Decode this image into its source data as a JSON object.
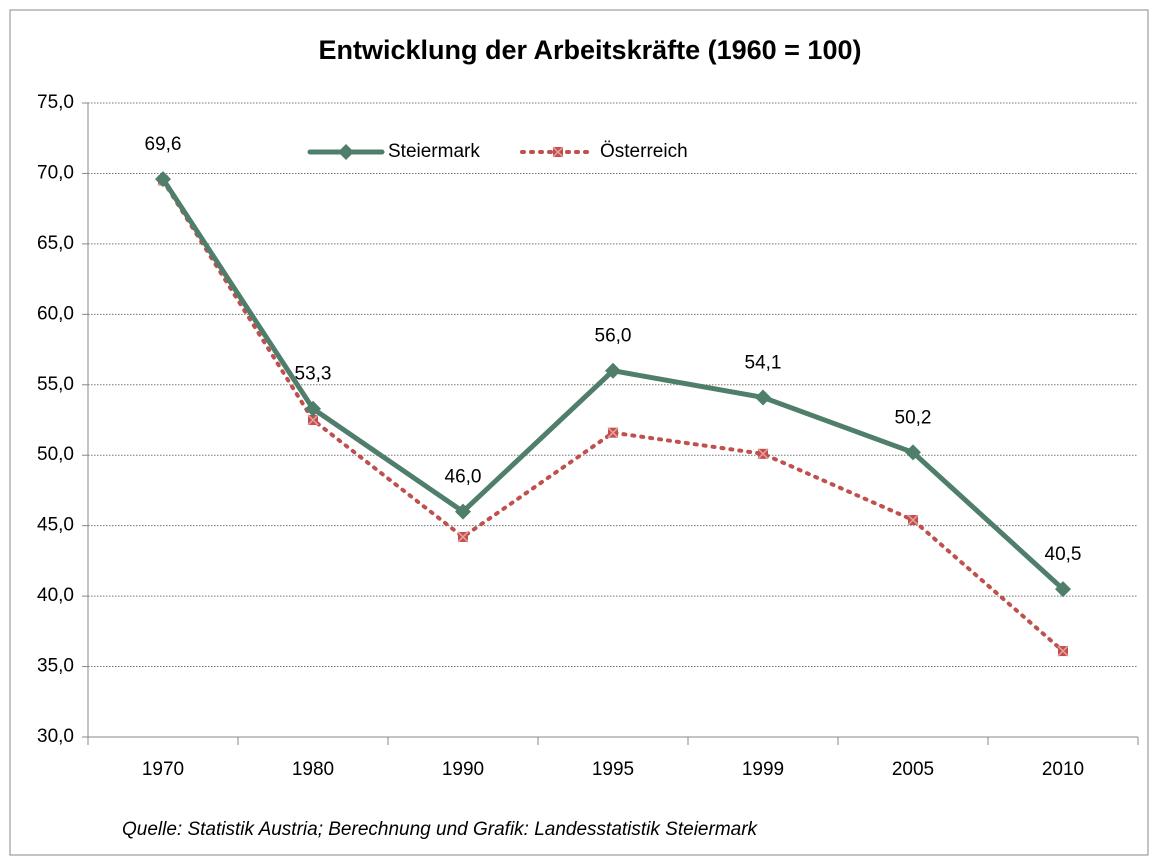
{
  "chart_data": {
    "type": "line",
    "title": "Entwicklung der Arbeitskräfte (1960 = 100)",
    "categories": [
      "1970",
      "1980",
      "1990",
      "1995",
      "1999",
      "2005",
      "2010"
    ],
    "series": [
      {
        "name": "Steiermark",
        "color": "#4f7f6a",
        "values": [
          69.6,
          53.3,
          46.0,
          56.0,
          54.1,
          50.2,
          40.5
        ],
        "value_labels": [
          "69,6",
          "53,3",
          "46,0",
          "56,0",
          "54,1",
          "50,2",
          "40,5"
        ]
      },
      {
        "name": "Österreich",
        "color": "#c0504d",
        "values": [
          69.5,
          52.5,
          44.2,
          51.6,
          50.1,
          45.4,
          36.1
        ]
      }
    ],
    "ylim": [
      30,
      75
    ],
    "yticks": [
      {
        "value": 30,
        "label": "30,0"
      },
      {
        "value": 35,
        "label": "35,0"
      },
      {
        "value": 40,
        "label": "40,0"
      },
      {
        "value": 45,
        "label": "45,0"
      },
      {
        "value": 50,
        "label": "50,0"
      },
      {
        "value": 55,
        "label": "55,0"
      },
      {
        "value": 60,
        "label": "60,0"
      },
      {
        "value": 65,
        "label": "65,0"
      },
      {
        "value": 70,
        "label": "70,0"
      },
      {
        "value": 75,
        "label": "75,0"
      }
    ],
    "grid": true,
    "legend": "top",
    "note": "Quelle: Statistik Austria; Berechnung und Grafik: Landesstatistik Steiermark"
  }
}
